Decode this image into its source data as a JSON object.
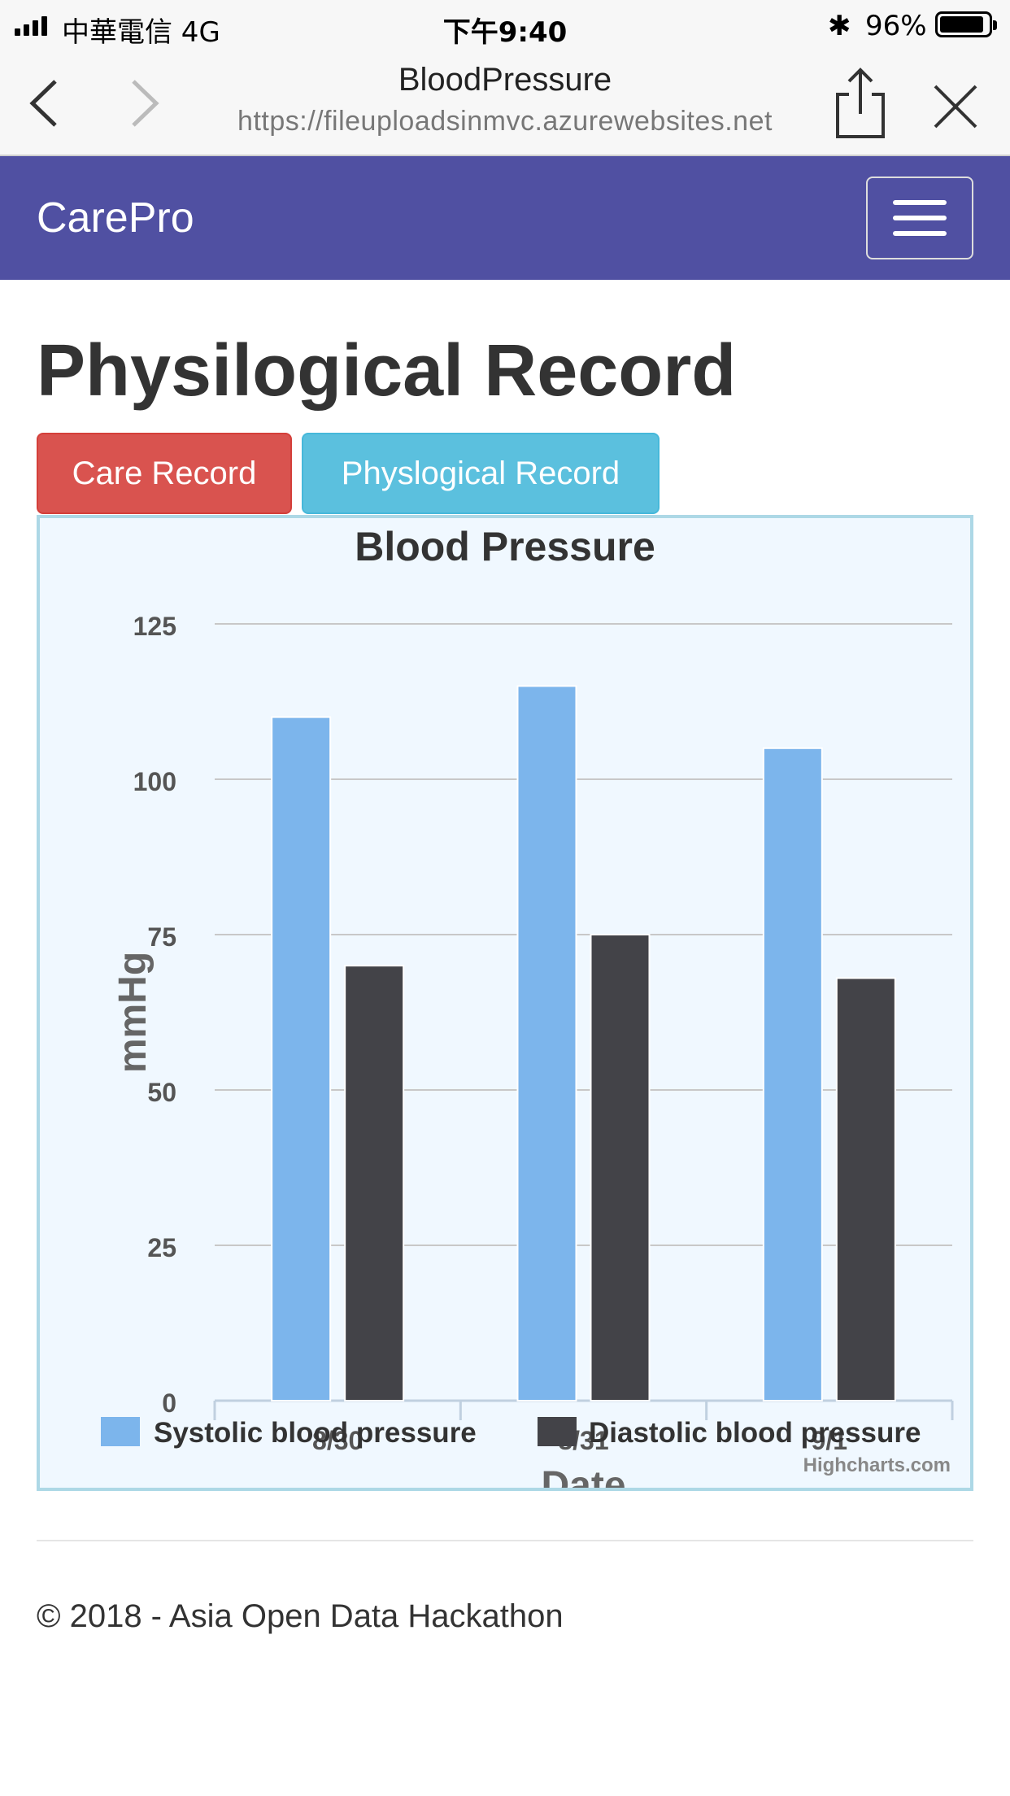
{
  "status_bar": {
    "carrier": "中華電信   4G",
    "time": "下午9:40",
    "bluetooth_icon": "bluetooth-icon",
    "battery_percent": "96%",
    "battery_level": 0.96
  },
  "browser": {
    "title": "BloodPressure",
    "url": "https://fileuploadsinmvc.azurewebsites.net"
  },
  "navbar": {
    "brand": "CarePro",
    "menu_icon": "hamburger-menu-icon"
  },
  "main": {
    "heading": "Physilogical Record",
    "tabs": [
      {
        "label": "Care Record",
        "color": "#d9534f"
      },
      {
        "label": "Physlogical Record",
        "color": "#5bc0de"
      }
    ]
  },
  "chart_data": {
    "type": "bar",
    "title": "Blood Pressure",
    "xlabel": "Date",
    "ylabel": "mmHg",
    "categories": [
      "8/30",
      "8/31",
      "9/1"
    ],
    "series": [
      {
        "name": "Systolic blood pressure",
        "values": [
          110,
          115,
          105
        ],
        "color": "#7cb5ec"
      },
      {
        "name": "Diastolic blood pressure",
        "values": [
          70,
          75,
          68
        ],
        "color": "#434348"
      }
    ],
    "ylim": [
      0,
      125
    ],
    "yticks": [
      0,
      25,
      50,
      75,
      100,
      125
    ],
    "grid": true,
    "legend_position": "bottom",
    "credits": "Highcharts.com"
  },
  "footer": {
    "text": "© 2018 - Asia Open Data Hackathon"
  }
}
